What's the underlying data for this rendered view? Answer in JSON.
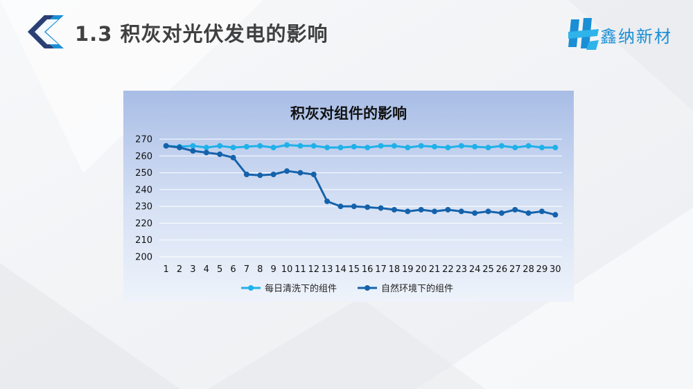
{
  "slide": {
    "title": "1.3 积灰对光伏发电的影响",
    "brand_name": "鑫纳新材"
  },
  "colors": {
    "accent": "#1b8fd6",
    "series_clean": "#1fb1e9",
    "series_natural": "#1462ab"
  },
  "icons": {
    "header": "chevron-left-icon",
    "brand": "brand-logo-icon"
  },
  "chart_data": {
    "type": "line",
    "title": "积灰对组件的影响",
    "xlabel": "",
    "ylabel": "",
    "x": [
      1,
      2,
      3,
      4,
      5,
      6,
      7,
      8,
      9,
      10,
      11,
      12,
      13,
      14,
      15,
      16,
      17,
      18,
      19,
      20,
      21,
      22,
      23,
      24,
      25,
      26,
      27,
      28,
      29,
      30
    ],
    "ylim": [
      200,
      270
    ],
    "yticks": [
      200,
      210,
      220,
      230,
      240,
      250,
      260,
      270
    ],
    "grid": true,
    "legend_position": "bottom",
    "series": [
      {
        "name": "每日清洗下的组件",
        "color": "#1fb1e9",
        "values": [
          266,
          265.5,
          266,
          265,
          266,
          265,
          265.5,
          266,
          265,
          266.5,
          266,
          266,
          265,
          265,
          265.5,
          265,
          266,
          266,
          265,
          266,
          265.5,
          265,
          266,
          265.5,
          265,
          266,
          265,
          266,
          265,
          265
        ]
      },
      {
        "name": "自然环境下的组件",
        "color": "#1462ab",
        "values": [
          266,
          265,
          263,
          262,
          261,
          259,
          249,
          248.5,
          249,
          251,
          250,
          249,
          233,
          230,
          230,
          229.5,
          229,
          228,
          227,
          228,
          227,
          228,
          227,
          226,
          227,
          226,
          228,
          226,
          227,
          225
        ]
      }
    ]
  }
}
